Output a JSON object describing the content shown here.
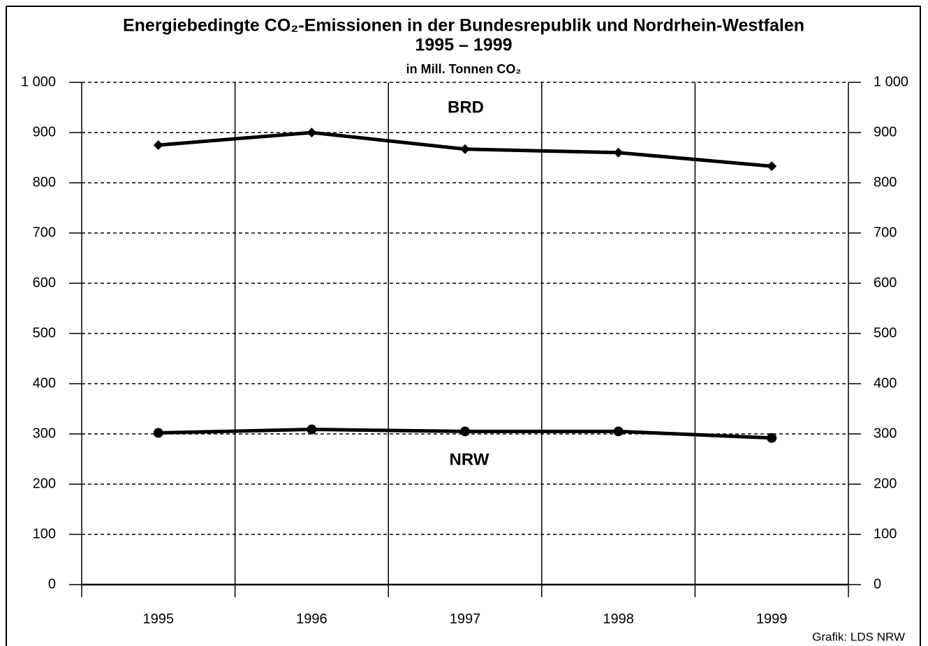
{
  "chart_data": {
    "type": "line",
    "title": "Energiebedingte CO₂-Emissionen in der Bundesrepublik und Nordrhein-Westfalen",
    "subtitle": "1995 – 1999",
    "unit_label": "in Mill. Tonnen CO₂",
    "source": "Grafik: LDS NRW",
    "categories": [
      "1995",
      "1996",
      "1997",
      "1998",
      "1999"
    ],
    "series": [
      {
        "name": "BRD",
        "color": "#000000",
        "marker": "diamond",
        "values": [
          875,
          900,
          867,
          860,
          833
        ]
      },
      {
        "name": "NRW",
        "color": "#000000",
        "marker": "circle",
        "values": [
          302,
          309,
          305,
          305,
          292
        ]
      }
    ],
    "ylim": [
      0,
      1000
    ],
    "yticks": [
      0,
      100,
      200,
      300,
      400,
      500,
      600,
      700,
      800,
      900,
      {
        "value": 1000,
        "label": "1 000"
      }
    ],
    "grid": true
  }
}
